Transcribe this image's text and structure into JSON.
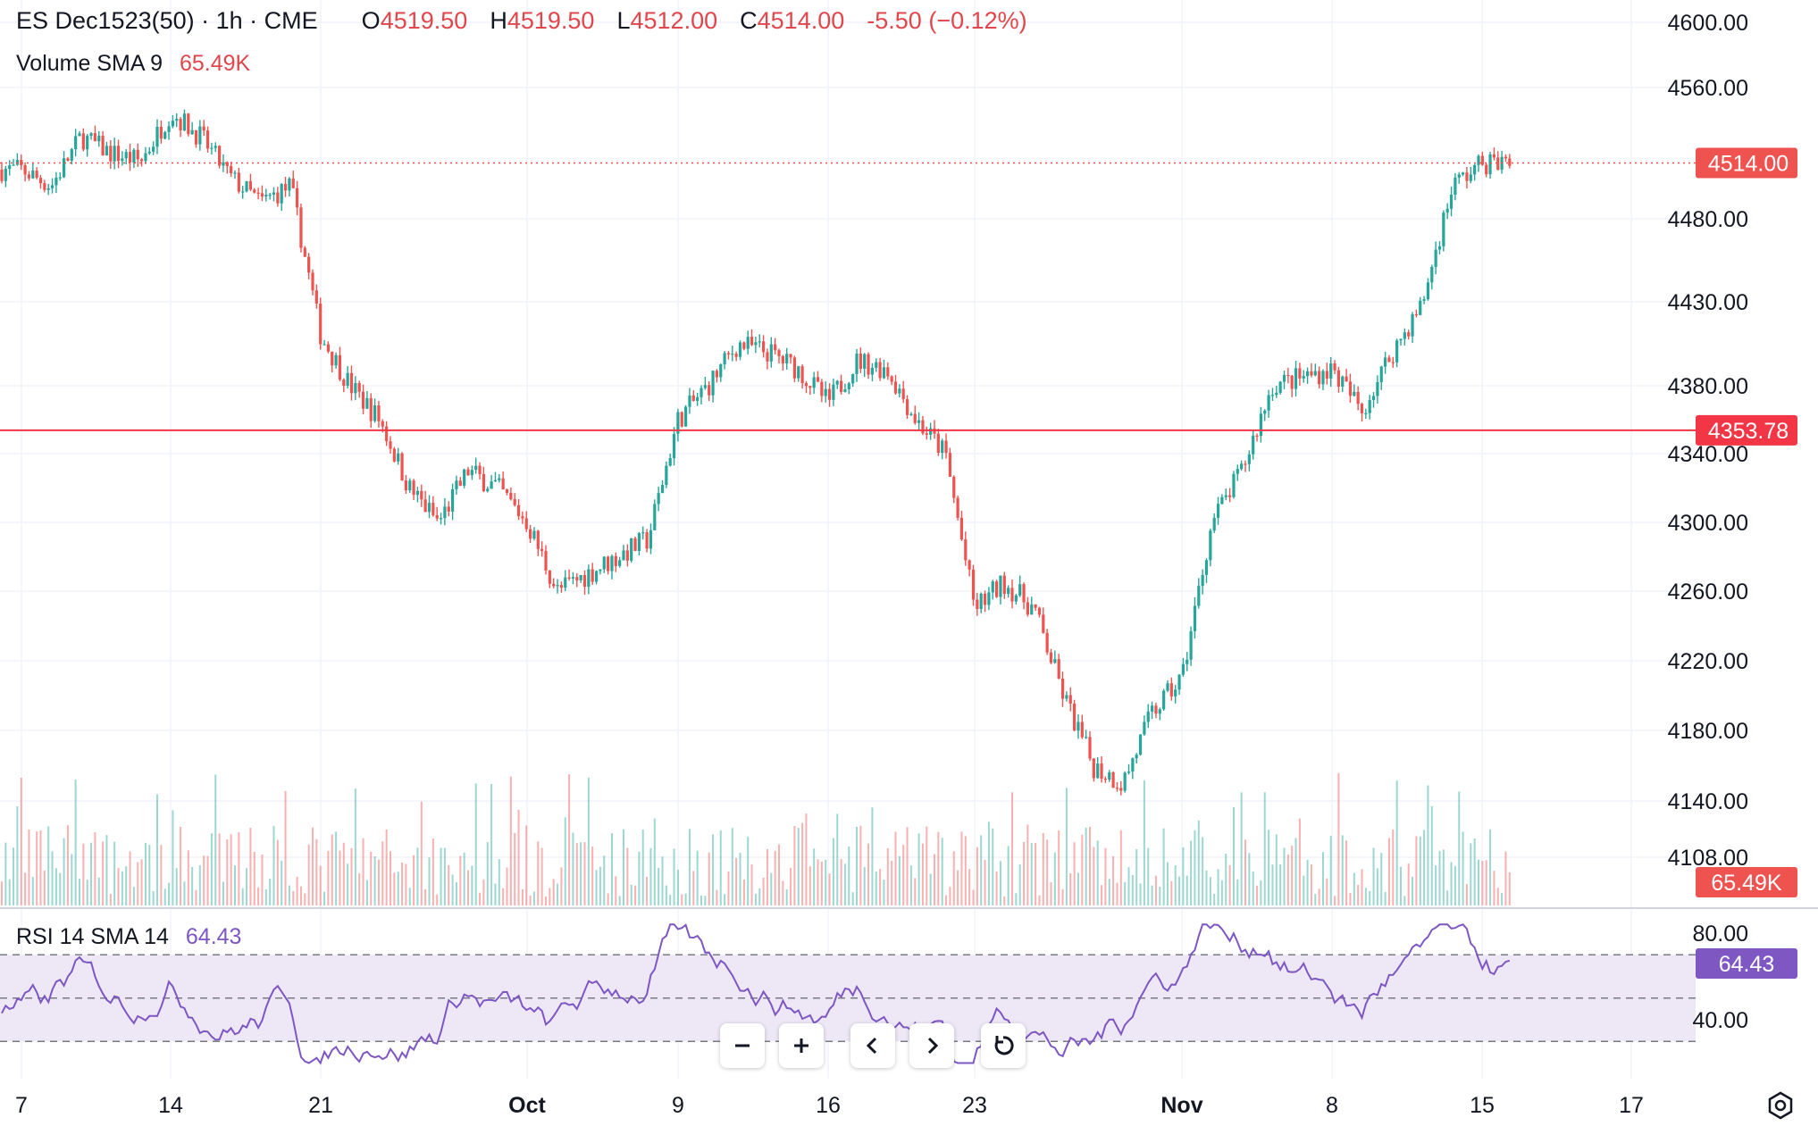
{
  "header": {
    "title": "ES Dec1523(50) · 1h · CME",
    "ohlc": [
      {
        "label": "O",
        "value": "4519.50"
      },
      {
        "label": "H",
        "value": "4519.50"
      },
      {
        "label": "L",
        "value": "4512.00"
      },
      {
        "label": "C",
        "value": "4514.00"
      }
    ],
    "change": "-5.50 (−0.12%)"
  },
  "volume_legend": {
    "label": "Volume SMA 9",
    "value": "65.49K"
  },
  "rsi_legend": {
    "label": "RSI 14 SMA 14",
    "value": "64.43"
  },
  "colors": {
    "up": "#26a69a",
    "down": "#ef5350",
    "rsi": "#7e57c2",
    "level_line": "#f23645",
    "rsi_band": "#ede7f6"
  },
  "icons": [
    "zoom-out-icon",
    "zoom-in-icon",
    "scroll-left-icon",
    "scroll-right-icon",
    "reset-icon",
    "settings-icon"
  ],
  "chart_data": [
    {
      "type": "candlestick",
      "x_tick_labels": [
        "7",
        "14",
        "21",
        "Oct",
        "9",
        "16",
        "23",
        "Nov",
        "8",
        "15",
        "17"
      ],
      "y_tick_labels": [
        "4600.00",
        "4560.00",
        "4480.00",
        "4430.00",
        "4380.00",
        "4340.00",
        "4300.00",
        "4260.00",
        "4220.00",
        "4180.00",
        "4140.00",
        "4108.00"
      ],
      "price_tags": [
        {
          "text": "4514.00",
          "price": 4514.0
        },
        {
          "text": "4353.78",
          "price": 4353.78
        }
      ],
      "horizontal_line": 4353.78,
      "last_price_line": 4514.0,
      "close_path_approx": [
        {
          "x": "Sep 7",
          "y": 4510
        },
        {
          "x": "Sep 8",
          "y": 4500
        },
        {
          "x": "Sep 11",
          "y": 4530
        },
        {
          "x": "Sep 12",
          "y": 4520
        },
        {
          "x": "Sep 13",
          "y": 4515
        },
        {
          "x": "Sep 14",
          "y": 4545
        },
        {
          "x": "Sep 15",
          "y": 4530
        },
        {
          "x": "Sep 18",
          "y": 4505
        },
        {
          "x": "Sep 19",
          "y": 4490
        },
        {
          "x": "Sep 20",
          "y": 4500
        },
        {
          "x": "Sep 21",
          "y": 4410
        },
        {
          "x": "Sep 22",
          "y": 4380
        },
        {
          "x": "Sep 25",
          "y": 4360
        },
        {
          "x": "Sep 26",
          "y": 4320
        },
        {
          "x": "Sep 27",
          "y": 4300
        },
        {
          "x": "Sep 28",
          "y": 4330
        },
        {
          "x": "Sep 29",
          "y": 4320
        },
        {
          "x": "Oct 2",
          "y": 4300
        },
        {
          "x": "Oct 3",
          "y": 4260
        },
        {
          "x": "Oct 4",
          "y": 4270
        },
        {
          "x": "Oct 5",
          "y": 4280
        },
        {
          "x": "Oct 6",
          "y": 4290
        },
        {
          "x": "Oct 9",
          "y": 4360
        },
        {
          "x": "Oct 10",
          "y": 4380
        },
        {
          "x": "Oct 11",
          "y": 4405
        },
        {
          "x": "Oct 12",
          "y": 4400
        },
        {
          "x": "Oct 13",
          "y": 4390
        },
        {
          "x": "Oct 16",
          "y": 4370
        },
        {
          "x": "Oct 17",
          "y": 4395
        },
        {
          "x": "Oct 18",
          "y": 4390
        },
        {
          "x": "Oct 19",
          "y": 4360
        },
        {
          "x": "Oct 20",
          "y": 4340
        },
        {
          "x": "Oct 23",
          "y": 4250
        },
        {
          "x": "Oct 24",
          "y": 4265
        },
        {
          "x": "Oct 25",
          "y": 4250
        },
        {
          "x": "Oct 26",
          "y": 4200
        },
        {
          "x": "Oct 27",
          "y": 4160
        },
        {
          "x": "Oct 30",
          "y": 4150
        },
        {
          "x": "Oct 31",
          "y": 4190
        },
        {
          "x": "Nov 1",
          "y": 4210
        },
        {
          "x": "Nov 2",
          "y": 4300
        },
        {
          "x": "Nov 3",
          "y": 4330
        },
        {
          "x": "Nov 6",
          "y": 4380
        },
        {
          "x": "Nov 7",
          "y": 4385
        },
        {
          "x": "Nov 8",
          "y": 4390
        },
        {
          "x": "Nov 9",
          "y": 4365
        },
        {
          "x": "Nov 10",
          "y": 4400
        },
        {
          "x": "Nov 13",
          "y": 4428
        },
        {
          "x": "Nov 14",
          "y": 4500
        },
        {
          "x": "Nov 15",
          "y": 4514
        }
      ]
    },
    {
      "type": "bar",
      "series_name": "Volume",
      "axis_label": "65.49K"
    },
    {
      "type": "line",
      "series_name": "RSI 14",
      "y_tick_labels": [
        "80.00",
        "40.00"
      ],
      "band": [
        30,
        70
      ],
      "current_value": "64.43"
    }
  ]
}
